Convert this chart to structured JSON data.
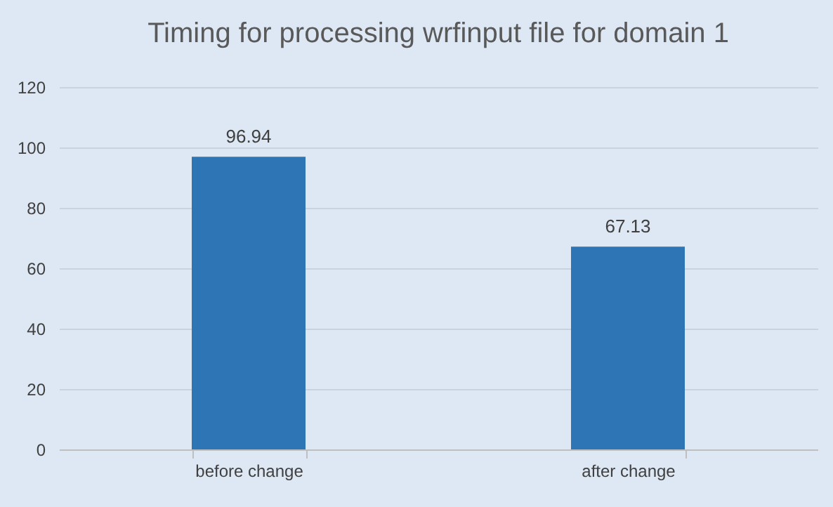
{
  "chart_data": {
    "type": "bar",
    "title": "Timing for processing wrfinput file for domain 1",
    "categories": [
      "before change",
      "after change"
    ],
    "values": [
      96.94,
      67.13
    ],
    "color": "#2e75b6",
    "ylim": [
      0,
      120
    ],
    "yticks": [
      0,
      20,
      40,
      60,
      80,
      100,
      120
    ],
    "grid": "y",
    "data_labels": true
  }
}
